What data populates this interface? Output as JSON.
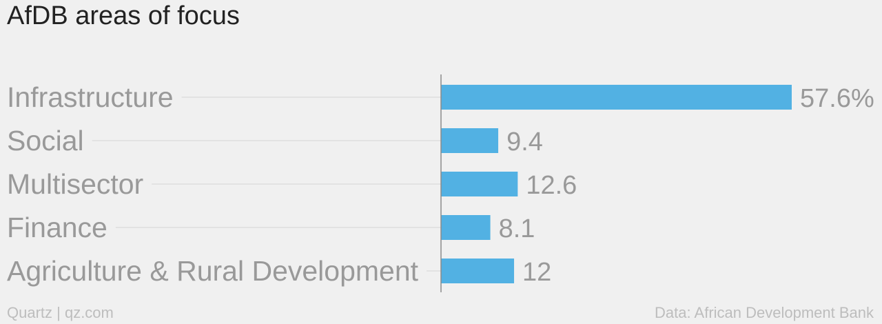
{
  "title": "AfDB areas of focus",
  "footer": {
    "credit": "Quartz | qz.com",
    "source": "Data: African Development Bank"
  },
  "colors": {
    "bar": "#52b1e3",
    "label": "#999999",
    "gridline": "#e2e2e2",
    "axis": "#8a8a8a",
    "background": "#f0f0f0"
  },
  "chart_data": {
    "type": "bar",
    "orientation": "horizontal",
    "title": "AfDB areas of focus",
    "categories": [
      "Infrastructure",
      "Social",
      "Multisector",
      "Finance",
      "Agriculture & Rural Development"
    ],
    "values": [
      57.6,
      9.4,
      12.6,
      8.1,
      12
    ],
    "data_labels": [
      "57.6%",
      "9.4",
      "12.6",
      "8.1",
      "12"
    ],
    "unit": "%",
    "xlim": [
      0,
      57.6
    ],
    "grid": false,
    "legend": "none"
  }
}
